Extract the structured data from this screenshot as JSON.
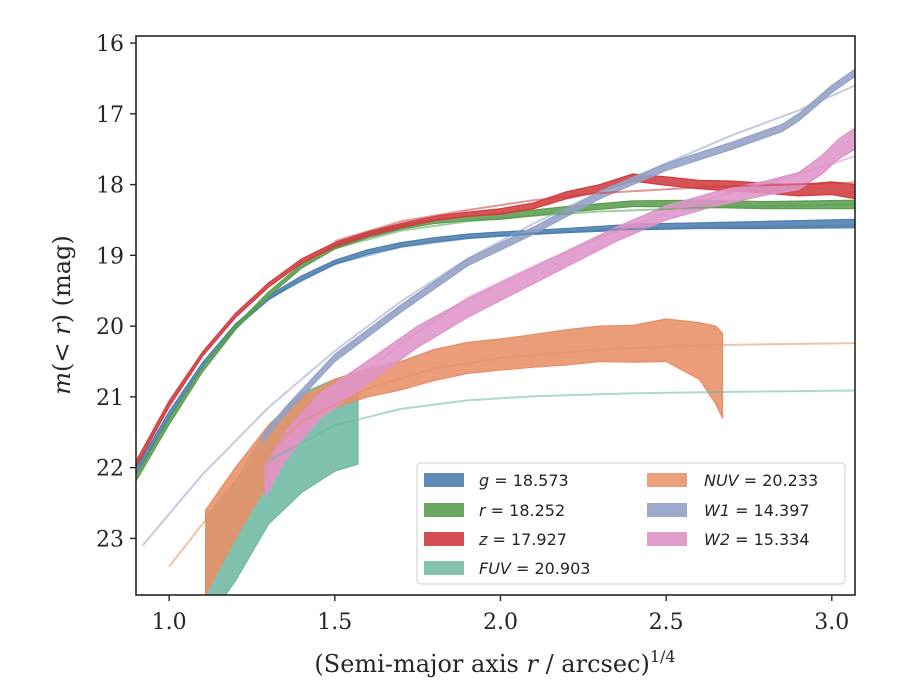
{
  "chart_data": {
    "type": "line",
    "xlabel": "(Semi-major axis r / arcsec)^1/4",
    "ylabel": "m(< r) (mag)",
    "xlim": [
      0.9,
      3.07
    ],
    "ylim": [
      23.8,
      15.9
    ],
    "y_inverted": true,
    "x_ticks": [
      "1.0",
      "1.5",
      "2.0",
      "2.5",
      "3.0"
    ],
    "y_ticks": [
      "16",
      "17",
      "18",
      "19",
      "20",
      "21",
      "22",
      "23"
    ],
    "grid": false,
    "legend_position": "lower-right",
    "series": [
      {
        "name": "g = 18.573",
        "band": "g",
        "color": "#4c7eae",
        "style": "band",
        "x": [
          0.9,
          1.0,
          1.1,
          1.2,
          1.3,
          1.4,
          1.5,
          1.6,
          1.7,
          1.8,
          1.9,
          2.0,
          2.2,
          2.4,
          2.6,
          2.8,
          3.07
        ],
        "y": [
          22.05,
          21.25,
          20.55,
          20.0,
          19.6,
          19.32,
          19.1,
          18.95,
          18.85,
          18.78,
          18.73,
          18.7,
          18.65,
          18.6,
          18.58,
          18.57,
          18.55
        ],
        "err": [
          0.04,
          0.04,
          0.03,
          0.03,
          0.03,
          0.03,
          0.03,
          0.03,
          0.03,
          0.03,
          0.03,
          0.03,
          0.03,
          0.04,
          0.04,
          0.05,
          0.06
        ],
        "model_x": [
          1.3,
          1.5,
          1.7,
          1.9,
          2.1,
          2.3,
          2.6,
          3.07
        ],
        "model_y": [
          19.6,
          19.12,
          18.88,
          18.76,
          18.69,
          18.64,
          18.6,
          18.58
        ]
      },
      {
        "name": "r = 18.252",
        "band": "r",
        "color": "#5a9e50",
        "style": "band",
        "x": [
          0.9,
          1.0,
          1.1,
          1.2,
          1.3,
          1.4,
          1.5,
          1.6,
          1.7,
          1.8,
          1.9,
          2.0,
          2.2,
          2.4,
          2.6,
          2.8,
          3.07
        ],
        "y": [
          22.15,
          21.35,
          20.62,
          20.02,
          19.55,
          19.15,
          18.88,
          18.72,
          18.6,
          18.52,
          18.48,
          18.45,
          18.35,
          18.27,
          18.27,
          18.29,
          18.28
        ],
        "err": [
          0.04,
          0.04,
          0.03,
          0.03,
          0.03,
          0.03,
          0.03,
          0.03,
          0.03,
          0.03,
          0.03,
          0.04,
          0.04,
          0.04,
          0.05,
          0.05,
          0.06
        ],
        "model_x": [
          1.5,
          1.7,
          1.9,
          2.1,
          2.3,
          2.6,
          3.07
        ],
        "model_y": [
          18.9,
          18.65,
          18.52,
          18.44,
          18.38,
          18.33,
          18.28
        ]
      },
      {
        "name": "z = 17.927",
        "band": "z",
        "color": "#d03b3f",
        "style": "band",
        "x": [
          0.9,
          1.0,
          1.1,
          1.2,
          1.3,
          1.4,
          1.5,
          1.6,
          1.7,
          1.8,
          1.9,
          2.0,
          2.1,
          2.2,
          2.3,
          2.4,
          2.5,
          2.6,
          2.7,
          2.8,
          2.9,
          3.0,
          3.07
        ],
        "y": [
          21.95,
          21.1,
          20.4,
          19.85,
          19.42,
          19.08,
          18.85,
          18.7,
          18.58,
          18.48,
          18.42,
          18.38,
          18.3,
          18.15,
          18.05,
          17.9,
          17.95,
          18.0,
          18.02,
          18.05,
          18.08,
          18.05,
          18.1
        ],
        "err": [
          0.04,
          0.04,
          0.03,
          0.03,
          0.03,
          0.03,
          0.03,
          0.03,
          0.03,
          0.03,
          0.03,
          0.04,
          0.04,
          0.05,
          0.05,
          0.05,
          0.06,
          0.06,
          0.07,
          0.07,
          0.08,
          0.09,
          0.1
        ],
        "model_x": [
          1.5,
          1.7,
          1.9,
          2.1,
          2.3,
          2.6,
          3.07
        ],
        "model_y": [
          18.8,
          18.52,
          18.36,
          18.22,
          18.12,
          18.04,
          17.97
        ]
      },
      {
        "name": "FUV = 20.903",
        "band": "FUV",
        "color": "#6db8a0",
        "style": "band",
        "x": [
          1.11,
          1.2,
          1.3,
          1.4,
          1.5,
          1.57
        ],
        "y": [
          23.45,
          22.9,
          22.1,
          21.65,
          21.4,
          21.3
        ],
        "err": [
          0.75,
          0.7,
          0.7,
          0.7,
          0.65,
          0.65
        ],
        "model_x": [
          1.3,
          1.5,
          1.7,
          1.9,
          2.1,
          2.4,
          2.7,
          3.07
        ],
        "model_y": [
          21.9,
          21.4,
          21.17,
          21.05,
          20.99,
          20.95,
          20.93,
          20.91
        ]
      },
      {
        "name": "NUV = 20.233",
        "band": "NUV",
        "color": "#e88e66",
        "style": "band",
        "x": [
          1.11,
          1.2,
          1.3,
          1.4,
          1.5,
          1.6,
          1.7,
          1.8,
          1.9,
          2.0,
          2.1,
          2.2,
          2.3,
          2.4,
          2.5,
          2.6,
          2.65,
          2.67
        ],
        "y": [
          23.2,
          22.5,
          21.8,
          21.25,
          20.95,
          20.8,
          20.7,
          20.55,
          20.45,
          20.4,
          20.35,
          20.3,
          20.25,
          20.25,
          20.2,
          20.35,
          20.55,
          20.7
        ],
        "err": [
          0.6,
          0.5,
          0.4,
          0.25,
          0.2,
          0.2,
          0.2,
          0.22,
          0.22,
          0.22,
          0.23,
          0.25,
          0.25,
          0.26,
          0.3,
          0.4,
          0.55,
          0.6
        ],
        "model_x": [
          1.0,
          1.2,
          1.4,
          1.6,
          1.8,
          2.0,
          2.3,
          2.6,
          3.07
        ],
        "model_y": [
          23.4,
          22.2,
          21.35,
          20.88,
          20.6,
          20.45,
          20.33,
          20.27,
          20.24
        ]
      },
      {
        "name": "W1 = 14.397",
        "band": "W1",
        "color": "#93a1c6",
        "style": "band",
        "x": [
          1.28,
          1.35,
          1.5,
          1.7,
          1.9,
          2.1,
          2.3,
          2.5,
          2.7,
          2.85,
          2.9,
          2.95,
          3.0,
          3.07
        ],
        "y": [
          21.6,
          21.2,
          20.45,
          19.75,
          19.1,
          18.65,
          18.15,
          17.75,
          17.45,
          17.2,
          17.05,
          16.85,
          16.65,
          16.42
        ],
        "err": [
          0.05,
          0.05,
          0.05,
          0.05,
          0.05,
          0.05,
          0.05,
          0.05,
          0.05,
          0.05,
          0.05,
          0.05,
          0.05,
          0.05
        ],
        "model_x": [
          0.92,
          1.1,
          1.3,
          1.5,
          1.7,
          1.9,
          2.1,
          2.3,
          2.5,
          2.7,
          2.9,
          3.07
        ],
        "model_y": [
          23.1,
          22.1,
          21.15,
          20.35,
          19.65,
          19.05,
          18.55,
          18.1,
          17.7,
          17.3,
          16.95,
          16.6
        ]
      },
      {
        "name": "W2 = 15.334",
        "band": "W2",
        "color": "#de94c8",
        "style": "band",
        "x": [
          1.29,
          1.35,
          1.45,
          1.6,
          1.75,
          1.9,
          2.05,
          2.2,
          2.35,
          2.5,
          2.65,
          2.8,
          2.9,
          2.97,
          3.02,
          3.07
        ],
        "y": [
          22.2,
          21.7,
          21.15,
          20.65,
          20.15,
          19.75,
          19.4,
          19.05,
          18.7,
          18.4,
          18.2,
          18.05,
          17.95,
          17.72,
          17.5,
          17.35
        ],
        "err": [
          0.22,
          0.2,
          0.18,
          0.16,
          0.15,
          0.13,
          0.12,
          0.11,
          0.1,
          0.1,
          0.1,
          0.1,
          0.12,
          0.13,
          0.14,
          0.15
        ],
        "model_x": [
          1.3,
          1.5,
          1.7,
          1.9,
          2.1,
          2.3,
          2.5,
          2.7,
          2.9,
          3.07
        ],
        "model_y": [
          22.2,
          21.0,
          20.25,
          19.6,
          19.15,
          18.75,
          18.4,
          18.1,
          17.85,
          17.6
        ]
      }
    ]
  },
  "legend": {
    "g": {
      "sym": "g",
      "rest": " = 18.573"
    },
    "r": {
      "sym": "r",
      "rest": " = 18.252"
    },
    "z": {
      "sym": "z",
      "rest": " = 17.927"
    },
    "fuv": {
      "sym": "FUV",
      "rest": " = 20.903"
    },
    "nuv": {
      "sym": "NUV",
      "rest": " = 20.233"
    },
    "w1": {
      "sym": "W1",
      "rest": " = 14.397"
    },
    "w2": {
      "sym": "W2",
      "rest": " = 15.334"
    }
  },
  "axis": {
    "x_label_main": "(Semi-major axis ",
    "x_label_var": "r",
    "x_label_tail": " / arcsec)",
    "x_label_exp": "1/4",
    "y_label_var": "m",
    "y_label_mid": "(< ",
    "y_label_var2": "r",
    "y_label_tail": ") (mag)"
  }
}
